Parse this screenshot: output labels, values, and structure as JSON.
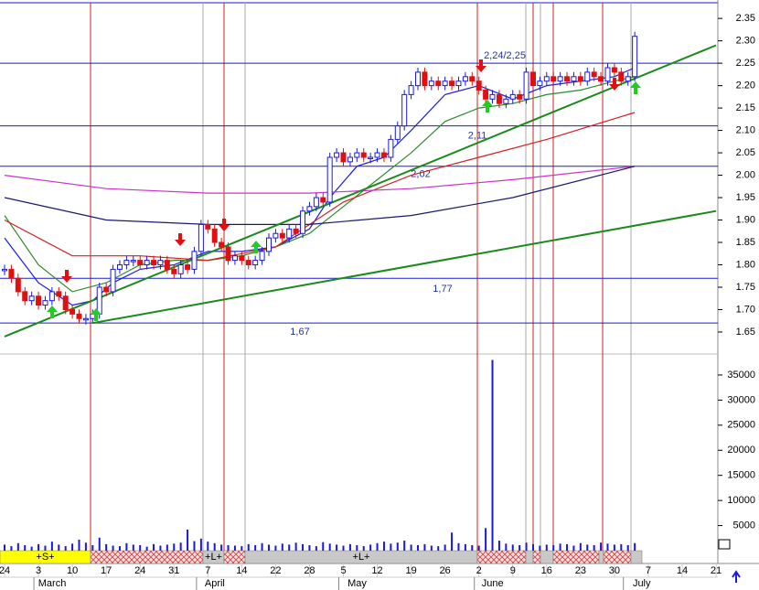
{
  "chart_data": {
    "type": "candlestick",
    "categories": [
      "24",
      null,
      null,
      null,
      null,
      "3",
      null,
      null,
      null,
      null,
      "10",
      null,
      null,
      null,
      null,
      "17",
      null,
      null,
      null,
      null,
      "24",
      null,
      null,
      null,
      null,
      "31",
      null,
      null,
      null,
      null,
      "7",
      null,
      null,
      null,
      null,
      "14",
      null,
      null,
      null,
      null,
      "22",
      null,
      null,
      null,
      null,
      "28",
      null,
      null,
      null,
      null,
      "5",
      null,
      null,
      null,
      null,
      "12",
      null,
      null,
      null,
      null,
      "19",
      null,
      null,
      null,
      null,
      "26",
      null,
      null,
      null,
      null,
      "2",
      null,
      null,
      null,
      null,
      "9",
      null,
      null,
      null,
      null,
      "16",
      null,
      null,
      null,
      null,
      "23",
      null,
      null,
      null,
      null,
      "30",
      null,
      null,
      null,
      null,
      "7",
      null,
      null,
      null,
      null,
      "14",
      null,
      null,
      null,
      null,
      "21"
    ],
    "months": [
      "March",
      "April",
      "May",
      "June",
      "July"
    ],
    "close": [
      1.79,
      1.77,
      1.74,
      1.72,
      1.73,
      1.71,
      1.72,
      1.74,
      1.73,
      1.7,
      1.69,
      1.68,
      1.68,
      1.69,
      1.75,
      1.74,
      1.79,
      1.8,
      1.81,
      1.81,
      1.8,
      1.81,
      1.8,
      1.81,
      1.79,
      1.78,
      1.8,
      1.79,
      1.83,
      1.89,
      1.88,
      1.85,
      1.84,
      1.81,
      1.82,
      1.81,
      1.8,
      1.81,
      1.83,
      1.86,
      1.87,
      1.86,
      1.88,
      1.87,
      1.92,
      1.93,
      1.95,
      1.94,
      2.04,
      2.05,
      2.03,
      2.04,
      2.05,
      2.04,
      2.04,
      2.05,
      2.04,
      2.08,
      2.11,
      2.18,
      2.2,
      2.23,
      2.2,
      2.21,
      2.2,
      2.21,
      2.2,
      2.21,
      2.22,
      2.21,
      2.19,
      2.17,
      2.18,
      2.16,
      2.17,
      2.18,
      2.17,
      2.23,
      2.2,
      2.21,
      2.22,
      2.21,
      2.22,
      2.21,
      2.22,
      2.21,
      2.23,
      2.22,
      2.21,
      2.24,
      2.23,
      2.21,
      2.22,
      2.31,
      null,
      null,
      null,
      null,
      null,
      null,
      null,
      null,
      null,
      null,
      null,
      null
    ],
    "volume": [
      1200,
      900,
      1500,
      1100,
      800,
      1300,
      1000,
      1800,
      1200,
      900,
      1400,
      2200,
      1600,
      1100,
      2600,
      1300,
      1000,
      900,
      1500,
      1200,
      1100,
      800,
      1300,
      1000,
      1200,
      1400,
      1600,
      4200,
      1900,
      2400,
      1800,
      1500,
      1200,
      1100,
      1000,
      900,
      1300,
      1100,
      1500,
      1200,
      1000,
      1400,
      1200,
      1600,
      1300,
      1100,
      900,
      1700,
      1400,
      1200,
      1000,
      1300,
      1100,
      900,
      1200,
      1500,
      1800,
      1400,
      1600,
      2000,
      1200,
      1100,
      1300,
      1000,
      900,
      1200,
      3600,
      1500,
      1300,
      1100,
      1000,
      4500,
      38000,
      2000,
      1400,
      1200,
      1100,
      1600,
      1300,
      1000,
      1200,
      1100,
      1400,
      1300,
      1000,
      1500,
      1200,
      1100,
      1600,
      1400,
      1200,
      1300,
      1100,
      1500,
      null,
      null,
      null,
      null,
      null,
      null,
      null,
      null,
      null,
      null,
      null,
      null
    ],
    "up_color": "#1a1adb",
    "down_color": "#e01010",
    "volume_color": "#1a1adb",
    "overlays": [
      {
        "color": "#1a1adb",
        "x": [
          0,
          5,
          10,
          13,
          16,
          20,
          25,
          30,
          35,
          40,
          45,
          48,
          52,
          56,
          60,
          65,
          70,
          75,
          80,
          85,
          90,
          93
        ],
        "values": [
          1.86,
          1.76,
          1.71,
          1.72,
          1.76,
          1.79,
          1.8,
          1.83,
          1.83,
          1.84,
          1.88,
          1.95,
          2.02,
          2.04,
          2.1,
          2.18,
          2.2,
          2.17,
          2.2,
          2.21,
          2.22,
          2.24
        ]
      },
      {
        "color": "#2e8b2e",
        "x": [
          0,
          5,
          10,
          15,
          20,
          25,
          30,
          35,
          40,
          45,
          50,
          55,
          60,
          65,
          70,
          75,
          80,
          85,
          90,
          93
        ],
        "values": [
          1.91,
          1.8,
          1.74,
          1.76,
          1.8,
          1.81,
          1.81,
          1.82,
          1.84,
          1.87,
          1.93,
          1.99,
          2.05,
          2.12,
          2.15,
          2.16,
          2.18,
          2.19,
          2.21,
          2.22
        ]
      },
      {
        "color": "#d42020",
        "x": [
          0,
          10,
          20,
          30,
          40,
          50,
          60,
          70,
          80,
          93
        ],
        "values": [
          1.9,
          1.82,
          1.82,
          1.81,
          1.84,
          1.94,
          2.0,
          2.04,
          2.08,
          2.14
        ]
      },
      {
        "color": "#cc33cc",
        "x": [
          0,
          15,
          30,
          45,
          60,
          75,
          93
        ],
        "values": [
          2.0,
          1.97,
          1.96,
          1.96,
          1.97,
          1.99,
          2.02
        ]
      },
      {
        "color": "#1a1a6e",
        "x": [
          0,
          15,
          30,
          45,
          60,
          75,
          93
        ],
        "values": [
          1.95,
          1.9,
          1.89,
          1.89,
          1.91,
          1.95,
          2.02
        ]
      }
    ],
    "trendlines": [
      {
        "color": "#1a8a1a",
        "x": [
          0,
          105
        ],
        "values": [
          1.64,
          2.29
        ]
      },
      {
        "color": "#1a8a1a",
        "x": [
          13,
          105
        ],
        "values": [
          1.67,
          1.92
        ]
      }
    ],
    "levels": [
      {
        "value": 2.25,
        "label": "2,24/2,25"
      },
      {
        "value": 2.11,
        "label": "2,11"
      },
      {
        "value": 2.02,
        "label": "2,02"
      },
      {
        "value": 1.77,
        "label": "1,77"
      },
      {
        "value": 1.67,
        "label": "1,67"
      }
    ],
    "ylim": [
      1.605,
      2.385
    ],
    "yticks": [
      {
        "value": 1.65,
        "label": "1.65"
      },
      {
        "value": 1.7,
        "label": "1.70"
      },
      {
        "value": 1.75,
        "label": "1.75"
      },
      {
        "value": 1.8,
        "label": "1.80"
      },
      {
        "value": 1.85,
        "label": "1.85"
      },
      {
        "value": 1.9,
        "label": "1.90"
      },
      {
        "value": 1.95,
        "label": "1.95"
      },
      {
        "value": 2.0,
        "label": "2.00"
      },
      {
        "value": 2.05,
        "label": "2.05"
      },
      {
        "value": 2.1,
        "label": "2.10"
      },
      {
        "value": 2.15,
        "label": "2.15"
      },
      {
        "value": 2.2,
        "label": "2.20"
      },
      {
        "value": 2.25,
        "label": "2.25"
      },
      {
        "value": 2.3,
        "label": "2.30"
      },
      {
        "value": 2.35,
        "label": "2.35"
      }
    ],
    "y2lim": [
      0,
      39000
    ],
    "y2ticks": [
      5000,
      10000,
      15000,
      20000,
      25000,
      30000,
      35000
    ],
    "signals": [
      "+S+",
      "+L+",
      "+L+"
    ]
  }
}
